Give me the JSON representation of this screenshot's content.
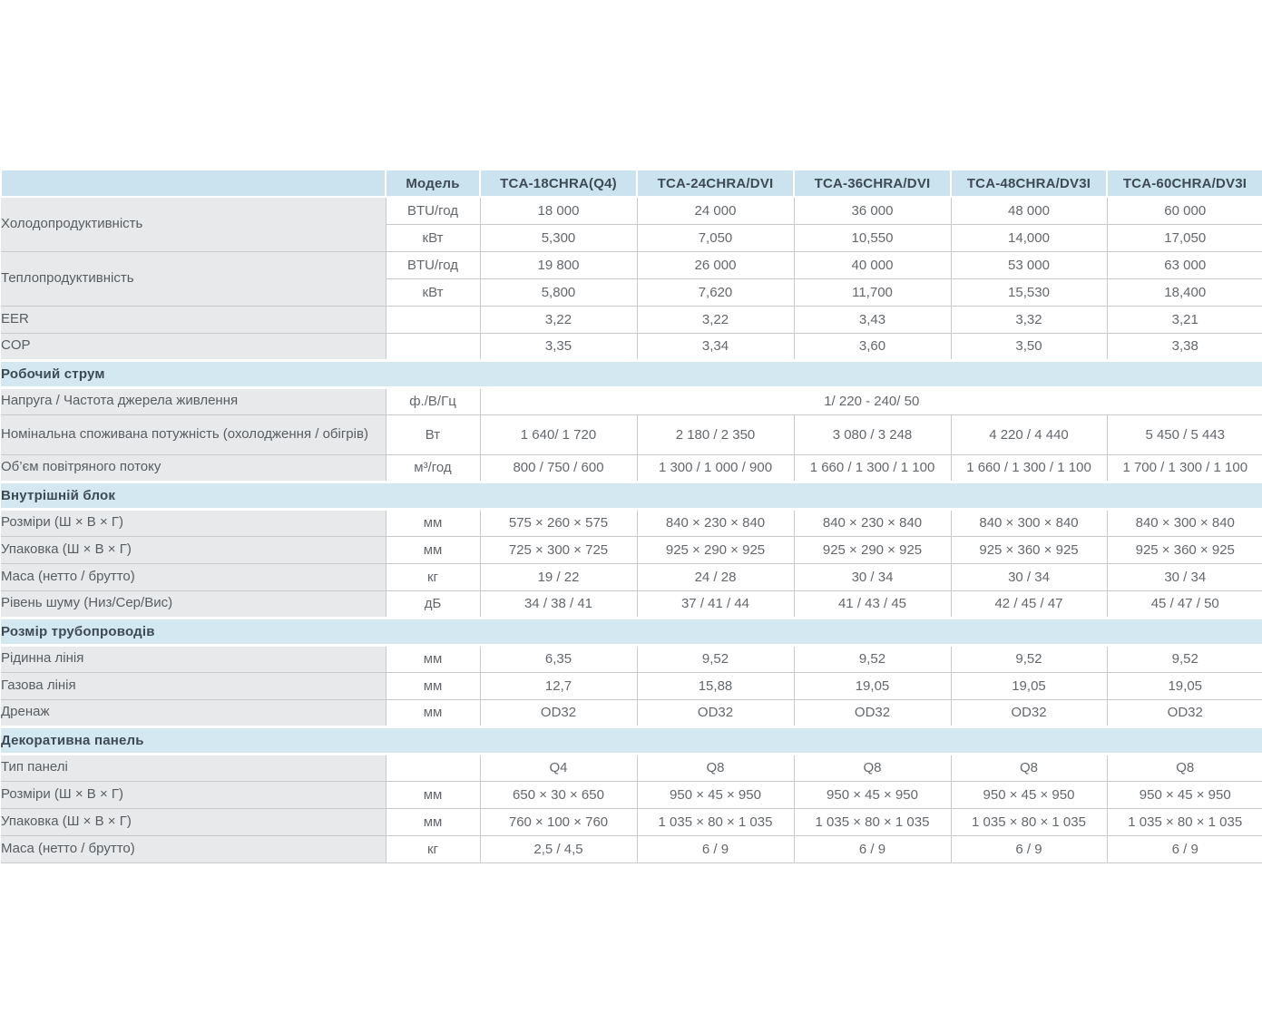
{
  "meta": {
    "type": "air-conditioner-specification-table",
    "language": "uk"
  },
  "colors": {
    "header_bg": "#cbe3ef",
    "section_bg": "#d3e8f1",
    "label_bg": "#e8e9ea",
    "border": "#c6cacd",
    "heading_text": "#3e4a54",
    "body_text": "#64686c"
  },
  "table": {
    "corner_label": "",
    "header": [
      "Модель",
      "TCA-18CHRA(Q4)",
      "TCA-24CHRA/DVI",
      "TCA-36CHRA/DVI",
      "TCA-48CHRA/DV3I",
      "TCA-60CHRA/DV3I"
    ],
    "sections": [
      {
        "title": null,
        "rows": [
          {
            "label": "Холодопродуктивність",
            "rowspan": 2,
            "unit": "BTU/год",
            "values": [
              "18 000",
              "24 000",
              "36 000",
              "48 000",
              "60 000"
            ]
          },
          {
            "label": null,
            "unit": "кВт",
            "values": [
              "5,300",
              "7,050",
              "10,550",
              "14,000",
              "17,050"
            ]
          },
          {
            "label": "Теплопродуктивність",
            "rowspan": 2,
            "unit": "BTU/год",
            "values": [
              "19 800",
              "26 000",
              "40 000",
              "53 000",
              "63 000"
            ]
          },
          {
            "label": null,
            "unit": "кВт",
            "values": [
              "5,800",
              "7,620",
              "11,700",
              "15,530",
              "18,400"
            ]
          },
          {
            "label": "EER",
            "unit": "",
            "values": [
              "3,22",
              "3,22",
              "3,43",
              "3,32",
              "3,21"
            ]
          },
          {
            "label": "COP",
            "unit": "",
            "values": [
              "3,35",
              "3,34",
              "3,60",
              "3,50",
              "3,38"
            ]
          }
        ]
      },
      {
        "title": "Робочий струм",
        "rows": [
          {
            "label": "Напруга / Частота джерела живлення",
            "unit": "ф./В/Гц",
            "merged": "1/ 220 - 240/ 50"
          },
          {
            "label": "Номінальна  споживана потужність (охолодження / обігрів)",
            "unit": "Вт",
            "tall": true,
            "values": [
              "1 640/ 1 720",
              "2 180 / 2 350",
              "3 080 / 3 248",
              "4 220 / 4 440",
              "5 450 / 5 443"
            ]
          },
          {
            "label": "Об’єм повітряного потоку",
            "unit": "м³/год",
            "values": [
              "800 / 750 / 600",
              "1 300 / 1 000 / 900",
              "1 660 / 1 300 / 1 100",
              "1 660 / 1 300 / 1 100",
              "1 700 / 1 300 / 1 100"
            ]
          }
        ]
      },
      {
        "title": "Внутрішній блок",
        "rows": [
          {
            "label": "Розміри (Ш × В × Г)",
            "unit": "мм",
            "values": [
              "575 × 260 × 575",
              "840 × 230 × 840",
              "840 × 230 × 840",
              "840 × 300 × 840",
              "840 × 300 × 840"
            ]
          },
          {
            "label": "Упаковка (Ш × В × Г)",
            "unit": "мм",
            "values": [
              "725 × 300 × 725",
              "925 × 290 × 925",
              "925 × 290 × 925",
              "925 × 360 × 925",
              "925 × 360 × 925"
            ]
          },
          {
            "label": "Маса (нетто / брутто)",
            "unit": "кг",
            "values": [
              "19 / 22",
              "24 / 28",
              "30 / 34",
              "30 / 34",
              "30 / 34"
            ]
          },
          {
            "label": "Рівень шуму (Низ/Сер/Вис)",
            "unit": "дБ",
            "values": [
              "34 / 38 / 41",
              "37 / 41 / 44",
              "41 / 43 / 45",
              "42 / 45 / 47",
              "45 / 47 / 50"
            ]
          }
        ]
      },
      {
        "title": "Розмір трубопроводів",
        "rows": [
          {
            "label": "Рідинна лінія",
            "unit": "мм",
            "values": [
              "6,35",
              "9,52",
              "9,52",
              "9,52",
              "9,52"
            ]
          },
          {
            "label": "Газова лінія",
            "unit": "мм",
            "values": [
              "12,7",
              "15,88",
              "19,05",
              "19,05",
              "19,05"
            ]
          },
          {
            "label": "Дренаж",
            "unit": "мм",
            "values": [
              "OD32",
              "OD32",
              "OD32",
              "OD32",
              "OD32"
            ]
          }
        ]
      },
      {
        "title": "Декоративна панель",
        "rows": [
          {
            "label": "Тип панелі",
            "unit": "",
            "values": [
              "Q4",
              "Q8",
              "Q8",
              "Q8",
              "Q8"
            ]
          },
          {
            "label": "Розміри (Ш × В × Г)",
            "unit": "мм",
            "values": [
              "650 × 30 × 650",
              "950 × 45 × 950",
              "950 × 45 × 950",
              "950 × 45 × 950",
              "950 × 45 × 950"
            ]
          },
          {
            "label": "Упаковка (Ш × В × Г)",
            "unit": "мм",
            "values": [
              "760 × 100 × 760",
              "1 035 × 80 × 1 035",
              "1 035 × 80 × 1 035",
              "1 035 × 80 × 1 035",
              "1 035 × 80 × 1 035"
            ]
          },
          {
            "label": "Маса (нетто / брутто)",
            "unit": "кг",
            "values": [
              "2,5 / 4,5",
              "6 / 9",
              "6 / 9",
              "6 / 9",
              "6 / 9"
            ]
          }
        ]
      }
    ]
  }
}
